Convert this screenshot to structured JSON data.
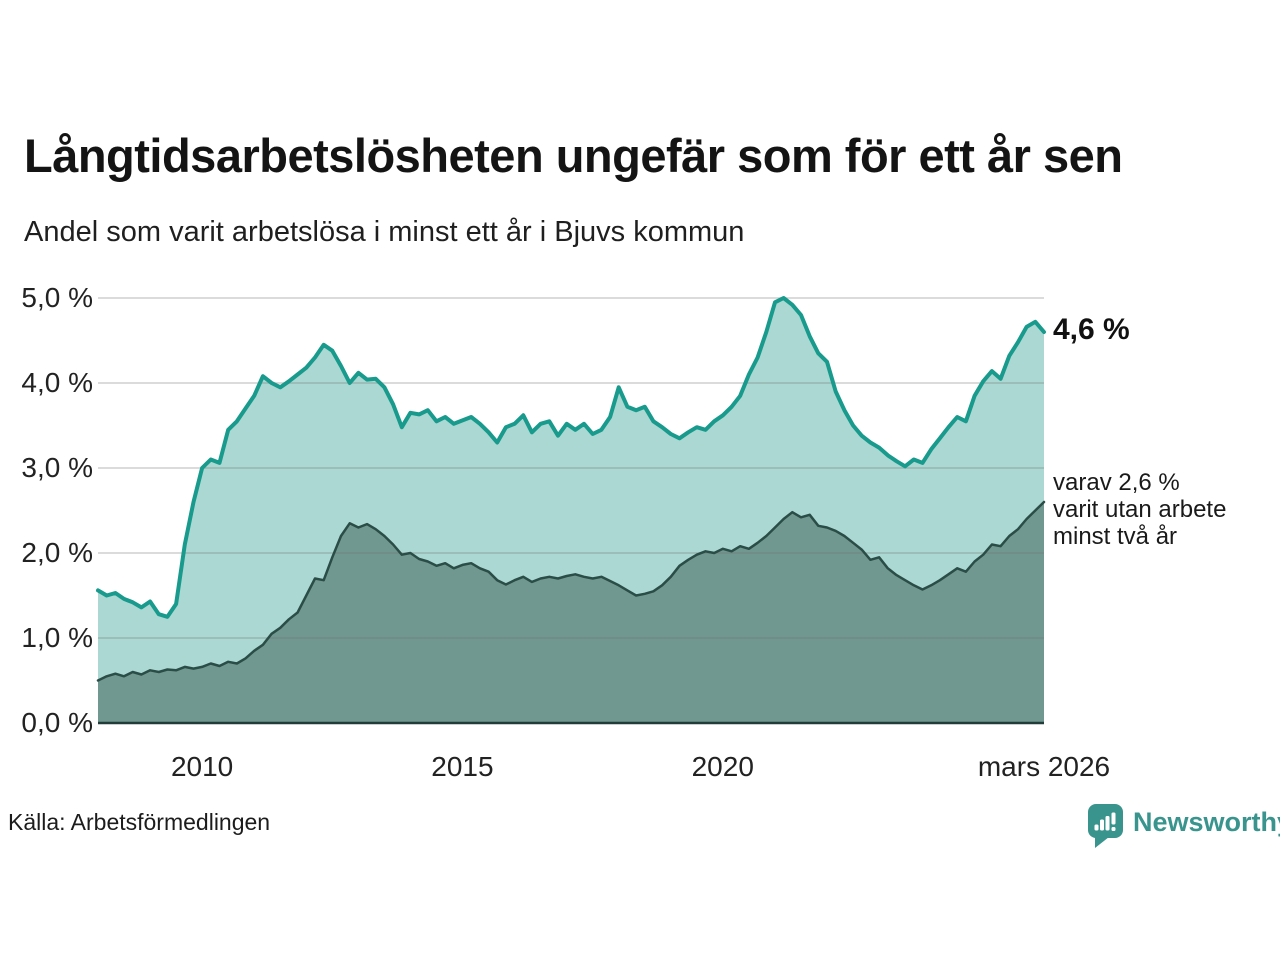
{
  "chart_data": {
    "type": "area",
    "title": "Långtidsarbetslösheten ungefär som för ett år sen",
    "subtitle": "Andel som varit arbetslösa i minst ett år i Bjuvs kommun",
    "unit": "%",
    "x_start": 2008.0,
    "x_end": 2026.17,
    "x_step_years": 0.1667,
    "ylim": [
      0,
      5
    ],
    "grid": true,
    "legend": "none",
    "yticks": [
      {
        "v": 5,
        "label": "5,0 %"
      },
      {
        "v": 4,
        "label": "4,0 %"
      },
      {
        "v": 3,
        "label": "3,0 %"
      },
      {
        "v": 2,
        "label": "2,0 %"
      },
      {
        "v": 1,
        "label": "1,0 %"
      },
      {
        "v": 0,
        "label": "0,0 %"
      }
    ],
    "xticks": [
      {
        "year": 2010,
        "label": "2010"
      },
      {
        "year": 2015,
        "label": "2015"
      },
      {
        "year": 2020,
        "label": "2020"
      },
      {
        "year": 2026.17,
        "label": "mars 2026"
      }
    ],
    "series": [
      {
        "name": "Andel som varit arbetslösa i minst ett år",
        "color": "#189a8c",
        "fill": "#abd8d2",
        "latest_value": 4.6,
        "values": [
          1.56,
          1.5,
          1.53,
          1.46,
          1.42,
          1.36,
          1.43,
          1.28,
          1.25,
          1.4,
          2.1,
          2.6,
          3.0,
          3.1,
          3.06,
          3.45,
          3.55,
          3.7,
          3.85,
          4.08,
          4.0,
          3.95,
          4.02,
          4.1,
          4.18,
          4.3,
          4.45,
          4.38,
          4.2,
          4.0,
          4.12,
          4.04,
          4.05,
          3.95,
          3.75,
          3.48,
          3.65,
          3.63,
          3.68,
          3.55,
          3.6,
          3.52,
          3.56,
          3.6,
          3.52,
          3.42,
          3.3,
          3.48,
          3.52,
          3.62,
          3.42,
          3.52,
          3.55,
          3.38,
          3.52,
          3.45,
          3.52,
          3.4,
          3.45,
          3.6,
          3.95,
          3.72,
          3.68,
          3.72,
          3.55,
          3.48,
          3.4,
          3.35,
          3.42,
          3.48,
          3.45,
          3.55,
          3.62,
          3.72,
          3.85,
          4.1,
          4.3,
          4.6,
          4.95,
          5.0,
          4.92,
          4.8,
          4.55,
          4.35,
          4.25,
          3.9,
          3.68,
          3.5,
          3.38,
          3.3,
          3.24,
          3.15,
          3.08,
          3.02,
          3.1,
          3.06,
          3.22,
          3.35,
          3.48,
          3.6,
          3.55,
          3.85,
          4.02,
          4.14,
          4.05,
          4.32,
          4.48,
          4.66,
          4.72,
          4.6
        ]
      },
      {
        "name": "varav varit utan arbete minst två år",
        "color": "#2a4d48",
        "fill": "#719890",
        "latest_value": 2.6,
        "values": [
          0.5,
          0.55,
          0.58,
          0.55,
          0.6,
          0.57,
          0.62,
          0.6,
          0.63,
          0.62,
          0.66,
          0.64,
          0.66,
          0.7,
          0.67,
          0.72,
          0.7,
          0.76,
          0.85,
          0.92,
          1.05,
          1.12,
          1.22,
          1.3,
          1.5,
          1.7,
          1.68,
          1.95,
          2.2,
          2.35,
          2.3,
          2.34,
          2.28,
          2.2,
          2.1,
          1.98,
          2.0,
          1.93,
          1.9,
          1.85,
          1.88,
          1.82,
          1.86,
          1.88,
          1.82,
          1.78,
          1.68,
          1.63,
          1.68,
          1.72,
          1.66,
          1.7,
          1.72,
          1.7,
          1.73,
          1.75,
          1.72,
          1.7,
          1.72,
          1.67,
          1.62,
          1.56,
          1.5,
          1.52,
          1.55,
          1.62,
          1.72,
          1.85,
          1.92,
          1.98,
          2.02,
          2.0,
          2.05,
          2.02,
          2.08,
          2.05,
          2.12,
          2.2,
          2.3,
          2.4,
          2.48,
          2.42,
          2.45,
          2.32,
          2.3,
          2.26,
          2.2,
          2.12,
          2.04,
          1.92,
          1.95,
          1.82,
          1.74,
          1.68,
          1.62,
          1.57,
          1.62,
          1.68,
          1.75,
          1.82,
          1.78,
          1.9,
          1.98,
          2.1,
          2.08,
          2.2,
          2.28,
          2.4,
          2.5,
          2.6
        ]
      }
    ],
    "annotations": {
      "latest_value_label": "4,6 %",
      "secondary_label": "varav 2,6 %\nvarit utan arbete\nminst två år"
    }
  },
  "footer": {
    "source": "Källa: Arbetsförmedlingen",
    "brand": "Newsworthy"
  },
  "colors": {
    "line_teal": "#189a8c",
    "fill_light": "#abd8d2",
    "fill_dark": "#719890",
    "line_dark": "#2a4d48",
    "baseline": "#223d39",
    "grid": "#d9d9d9",
    "brand_teal": "#3a948e"
  }
}
